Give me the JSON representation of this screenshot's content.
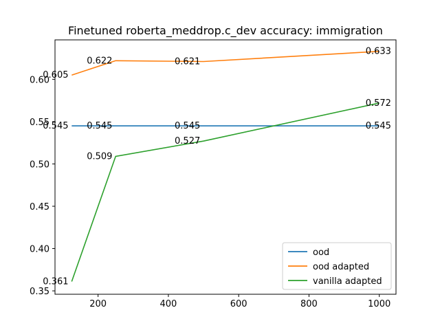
{
  "chart_data": {
    "type": "line",
    "title": "Finetuned roberta_meddrop.c_dev accuracy: immigration",
    "xlabel": "",
    "ylabel": "",
    "xlim": [
      77.5,
      1047.5
    ],
    "ylim": [
      0.346,
      0.6466
    ],
    "xticks": [
      200,
      400,
      600,
      800,
      1000
    ],
    "yticks": [
      0.35,
      0.4,
      0.45,
      0.5,
      0.55,
      0.6
    ],
    "grid": false,
    "legend_position": "lower right",
    "series": [
      {
        "name": "ood",
        "color": "#1f77b4",
        "x": [
          125,
          250,
          500,
          1000
        ],
        "values": [
          0.545,
          0.545,
          0.545,
          0.545
        ],
        "labels": [
          "0.545",
          "0.545",
          "0.545",
          "0.545"
        ]
      },
      {
        "name": "ood adapted",
        "color": "#ff7f0e",
        "x": [
          125,
          250,
          500,
          1000
        ],
        "values": [
          0.605,
          0.622,
          0.621,
          0.633
        ],
        "labels": [
          "0.605",
          "0.622",
          "0.621",
          "0.633"
        ]
      },
      {
        "name": "vanilla adapted",
        "color": "#2ca02c",
        "x": [
          125,
          250,
          500,
          1000
        ],
        "values": [
          0.361,
          0.509,
          0.527,
          0.572
        ],
        "labels": [
          "0.361",
          "0.509",
          "0.527",
          "0.572"
        ]
      }
    ]
  }
}
